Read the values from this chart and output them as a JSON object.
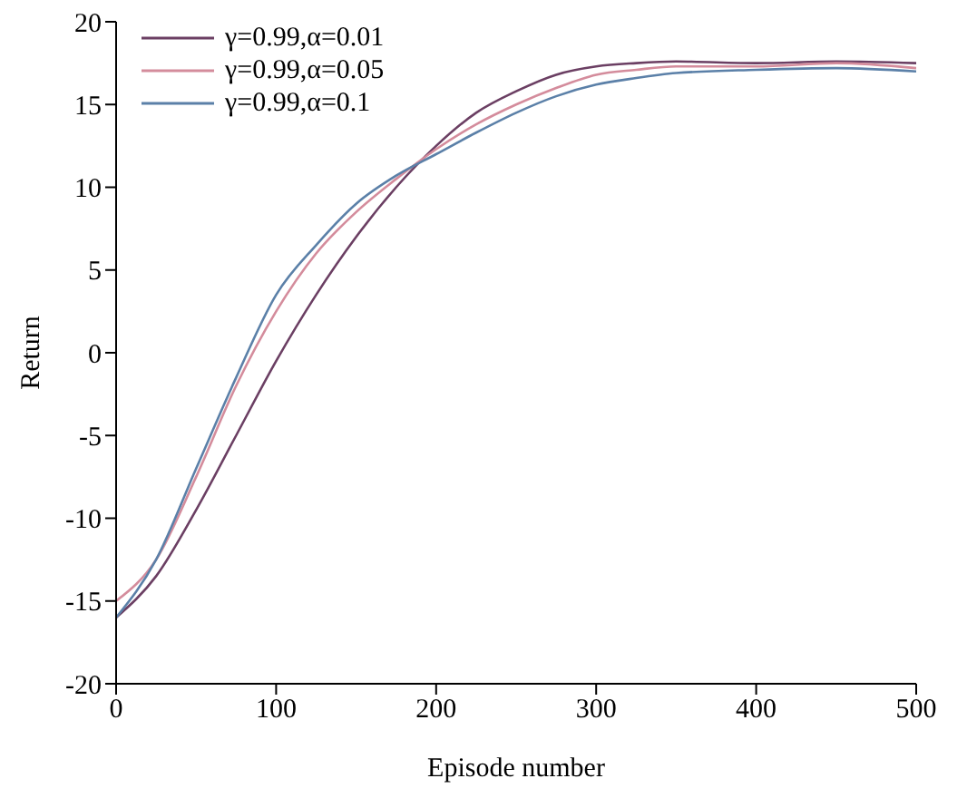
{
  "chart_data": {
    "type": "line",
    "xlabel": "Episode number",
    "ylabel": "Return",
    "xlim": [
      0,
      500
    ],
    "xticks": [
      0,
      100,
      200,
      300,
      400,
      500
    ],
    "ylim": [
      -20,
      20
    ],
    "yticks": [
      -20,
      -15,
      -10,
      -5,
      0,
      5,
      10,
      15,
      20
    ],
    "grid": false,
    "legend": "top left",
    "marker": "none",
    "line_style": "solid",
    "x": [
      0,
      25,
      50,
      75,
      100,
      125,
      150,
      175,
      200,
      225,
      250,
      275,
      300,
      325,
      350,
      400,
      450,
      500
    ],
    "series": [
      {
        "name": "γ=0.99,α=0.01",
        "color": "#6b3f63",
        "values": [
          -16,
          -13.5,
          -9.5,
          -5,
          -0.5,
          3.5,
          7,
          10,
          12.5,
          14.5,
          15.8,
          16.8,
          17.3,
          17.5,
          17.6,
          17.5,
          17.6,
          17.5
        ]
      },
      {
        "name": "γ=0.99,α=0.05",
        "color": "#d48c9c",
        "values": [
          -15,
          -12.5,
          -7.5,
          -2,
          2.5,
          6,
          8.5,
          10.5,
          12.3,
          13.8,
          15,
          16,
          16.8,
          17.1,
          17.3,
          17.3,
          17.5,
          17.2
        ]
      },
      {
        "name": "γ=0.99,α=0.1",
        "color": "#5b80a8",
        "values": [
          -16,
          -12.5,
          -7,
          -1.5,
          3.5,
          6.5,
          9,
          10.7,
          12,
          13.3,
          14.5,
          15.5,
          16.2,
          16.6,
          16.9,
          17.1,
          17.2,
          17
        ]
      }
    ]
  }
}
